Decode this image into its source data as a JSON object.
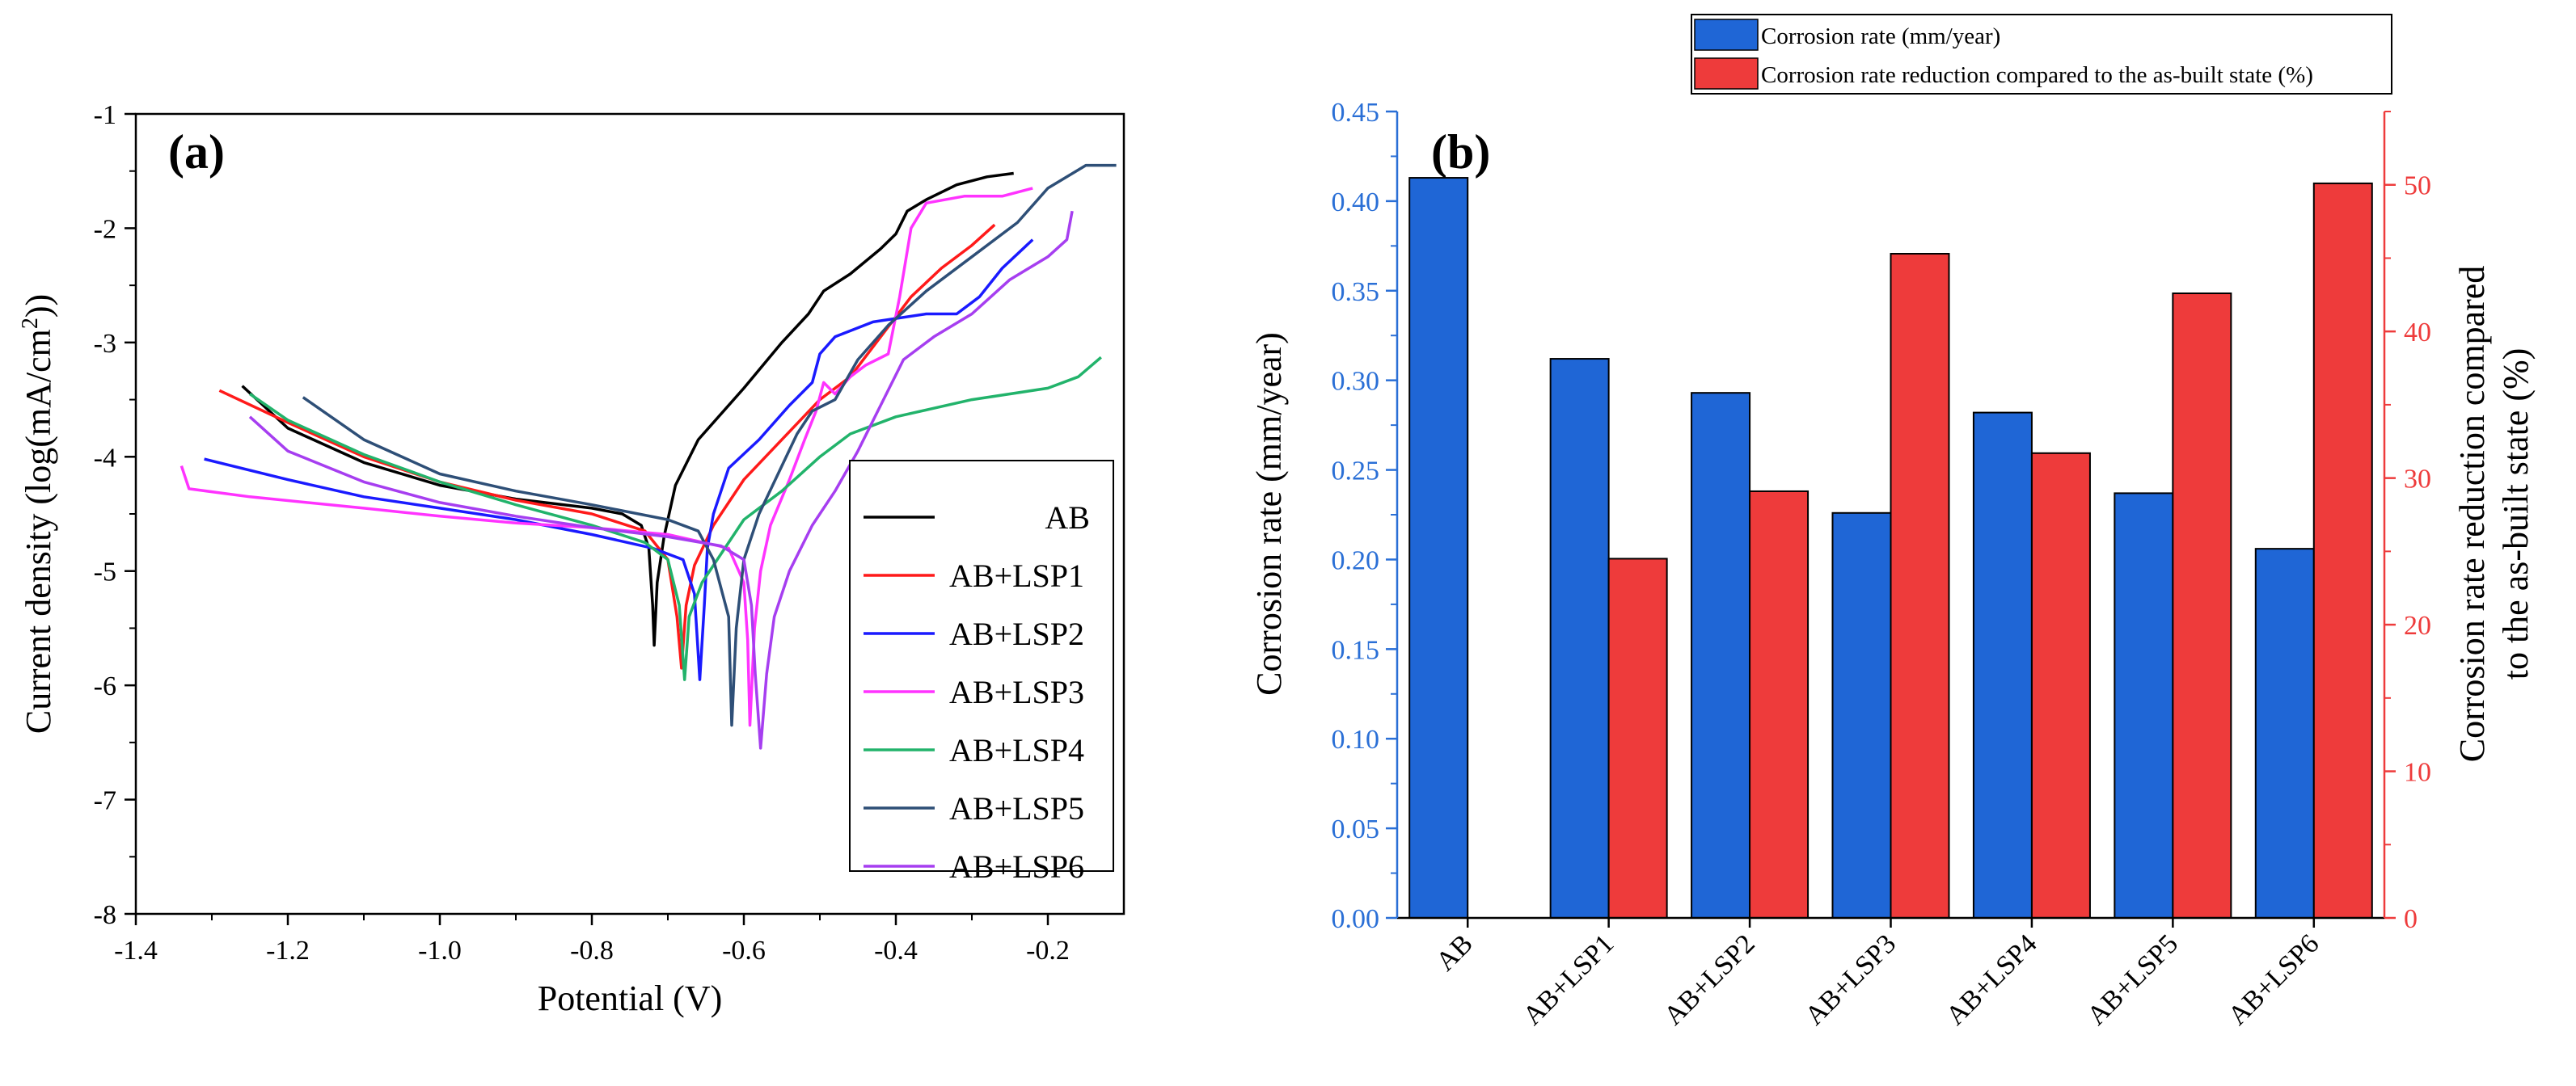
{
  "colors": {
    "AB": "#000000",
    "LSP1": "#ff1a1a",
    "LSP2": "#1a1aff",
    "LSP3": "#ff33ff",
    "LSP4": "#22b36b",
    "LSP5": "#2e4f77",
    "LSP6": "#a63ef0",
    "bar_blue": "#1f66d6",
    "bar_red": "#ee3b3b",
    "axis_blue": "#2a6fd6",
    "axis_red": "#ee3b3b"
  },
  "chart_data": [
    {
      "panel": "(a)",
      "type": "line",
      "xlabel": "Potential (V)",
      "ylabel_pre": "Current density (log(mA/cm",
      "ylabel_sup": "2",
      "ylabel_post": "))",
      "xlim": [
        -1.4,
        -0.1
      ],
      "ylim": [
        -8,
        -1
      ],
      "xticks": [
        -1.4,
        -1.2,
        -1.0,
        -0.8,
        -0.6,
        -0.4,
        -0.2
      ],
      "xtick_labels": [
        "-1.4",
        "-1.2",
        "-1.0",
        "-0.8",
        "-0.6",
        "-0.4",
        "-0.2"
      ],
      "yticks": [
        -8,
        -7,
        -6,
        -5,
        -4,
        -3,
        -2,
        -1
      ],
      "ytick_labels": [
        "-8",
        "-7",
        "-6",
        "-5",
        "-4",
        "-3",
        "-2",
        "-1"
      ],
      "legend_position": "right",
      "series": [
        {
          "name": "AB",
          "color_key": "AB",
          "points": [
            [
              -1.26,
              -3.38
            ],
            [
              -1.2,
              -3.75
            ],
            [
              -1.1,
              -4.05
            ],
            [
              -1.0,
              -4.25
            ],
            [
              -0.9,
              -4.37
            ],
            [
              -0.8,
              -4.45
            ],
            [
              -0.76,
              -4.5
            ],
            [
              -0.735,
              -4.6
            ],
            [
              -0.725,
              -4.8
            ],
            [
              -0.72,
              -5.3
            ],
            [
              -0.718,
              -5.65
            ],
            [
              -0.714,
              -5.1
            ],
            [
              -0.705,
              -4.7
            ],
            [
              -0.69,
              -4.25
            ],
            [
              -0.66,
              -3.85
            ],
            [
              -0.6,
              -3.4
            ],
            [
              -0.55,
              -3.0
            ],
            [
              -0.515,
              -2.75
            ],
            [
              -0.495,
              -2.55
            ],
            [
              -0.46,
              -2.4
            ],
            [
              -0.42,
              -2.18
            ],
            [
              -0.4,
              -2.05
            ],
            [
              -0.385,
              -1.85
            ],
            [
              -0.36,
              -1.75
            ],
            [
              -0.32,
              -1.62
            ],
            [
              -0.28,
              -1.55
            ],
            [
              -0.245,
              -1.52
            ]
          ]
        },
        {
          "name": "AB+LSP1",
          "color_key": "LSP1",
          "points": [
            [
              -1.29,
              -3.42
            ],
            [
              -1.2,
              -3.7
            ],
            [
              -1.1,
              -4.0
            ],
            [
              -1.0,
              -4.22
            ],
            [
              -0.9,
              -4.38
            ],
            [
              -0.8,
              -4.5
            ],
            [
              -0.73,
              -4.65
            ],
            [
              -0.7,
              -4.9
            ],
            [
              -0.688,
              -5.4
            ],
            [
              -0.682,
              -5.85
            ],
            [
              -0.676,
              -5.3
            ],
            [
              -0.665,
              -4.95
            ],
            [
              -0.64,
              -4.6
            ],
            [
              -0.6,
              -4.2
            ],
            [
              -0.55,
              -3.85
            ],
            [
              -0.5,
              -3.5
            ],
            [
              -0.46,
              -3.3
            ],
            [
              -0.42,
              -2.95
            ],
            [
              -0.38,
              -2.6
            ],
            [
              -0.34,
              -2.35
            ],
            [
              -0.3,
              -2.15
            ],
            [
              -0.27,
              -1.97
            ]
          ]
        },
        {
          "name": "AB+LSP2",
          "color_key": "LSP2",
          "points": [
            [
              -1.31,
              -4.02
            ],
            [
              -1.2,
              -4.2
            ],
            [
              -1.1,
              -4.35
            ],
            [
              -1.0,
              -4.45
            ],
            [
              -0.9,
              -4.55
            ],
            [
              -0.8,
              -4.68
            ],
            [
              -0.72,
              -4.8
            ],
            [
              -0.68,
              -4.9
            ],
            [
              -0.665,
              -5.2
            ],
            [
              -0.658,
              -5.95
            ],
            [
              -0.652,
              -5.3
            ],
            [
              -0.648,
              -4.8
            ],
            [
              -0.64,
              -4.5
            ],
            [
              -0.62,
              -4.1
            ],
            [
              -0.58,
              -3.85
            ],
            [
              -0.54,
              -3.55
            ],
            [
              -0.51,
              -3.35
            ],
            [
              -0.5,
              -3.1
            ],
            [
              -0.48,
              -2.95
            ],
            [
              -0.43,
              -2.82
            ],
            [
              -0.36,
              -2.75
            ],
            [
              -0.32,
              -2.75
            ],
            [
              -0.29,
              -2.6
            ],
            [
              -0.26,
              -2.35
            ],
            [
              -0.22,
              -2.1
            ]
          ]
        },
        {
          "name": "AB+LSP3",
          "color_key": "LSP3",
          "points": [
            [
              -1.34,
              -4.08
            ],
            [
              -1.33,
              -4.28
            ],
            [
              -1.25,
              -4.35
            ],
            [
              -1.1,
              -4.45
            ],
            [
              -1.0,
              -4.52
            ],
            [
              -0.9,
              -4.58
            ],
            [
              -0.8,
              -4.62
            ],
            [
              -0.7,
              -4.68
            ],
            [
              -0.62,
              -4.8
            ],
            [
              -0.6,
              -5.1
            ],
            [
              -0.595,
              -5.6
            ],
            [
              -0.592,
              -6.35
            ],
            [
              -0.586,
              -5.5
            ],
            [
              -0.578,
              -5.0
            ],
            [
              -0.565,
              -4.6
            ],
            [
              -0.54,
              -4.2
            ],
            [
              -0.52,
              -3.85
            ],
            [
              -0.505,
              -3.6
            ],
            [
              -0.495,
              -3.35
            ],
            [
              -0.48,
              -3.45
            ],
            [
              -0.46,
              -3.3
            ],
            [
              -0.44,
              -3.2
            ],
            [
              -0.41,
              -3.1
            ],
            [
              -0.395,
              -2.6
            ],
            [
              -0.38,
              -2.0
            ],
            [
              -0.36,
              -1.78
            ],
            [
              -0.31,
              -1.72
            ],
            [
              -0.26,
              -1.72
            ],
            [
              -0.22,
              -1.65
            ]
          ]
        },
        {
          "name": "AB+LSP4",
          "color_key": "LSP4",
          "points": [
            [
              -1.25,
              -3.45
            ],
            [
              -1.2,
              -3.68
            ],
            [
              -1.1,
              -3.98
            ],
            [
              -1.0,
              -4.22
            ],
            [
              -0.9,
              -4.42
            ],
            [
              -0.8,
              -4.6
            ],
            [
              -0.73,
              -4.75
            ],
            [
              -0.7,
              -4.9
            ],
            [
              -0.685,
              -5.3
            ],
            [
              -0.678,
              -5.95
            ],
            [
              -0.672,
              -5.4
            ],
            [
              -0.655,
              -5.1
            ],
            [
              -0.63,
              -4.85
            ],
            [
              -0.6,
              -4.55
            ],
            [
              -0.55,
              -4.3
            ],
            [
              -0.5,
              -4.0
            ],
            [
              -0.46,
              -3.8
            ],
            [
              -0.4,
              -3.65
            ],
            [
              -0.3,
              -3.5
            ],
            [
              -0.2,
              -3.4
            ],
            [
              -0.16,
              -3.3
            ],
            [
              -0.13,
              -3.13
            ]
          ]
        },
        {
          "name": "AB+LSP5",
          "color_key": "LSP5",
          "points": [
            [
              -1.18,
              -3.48
            ],
            [
              -1.1,
              -3.85
            ],
            [
              -1.0,
              -4.15
            ],
            [
              -0.9,
              -4.3
            ],
            [
              -0.8,
              -4.42
            ],
            [
              -0.7,
              -4.55
            ],
            [
              -0.66,
              -4.65
            ],
            [
              -0.64,
              -4.9
            ],
            [
              -0.62,
              -5.4
            ],
            [
              -0.616,
              -6.35
            ],
            [
              -0.61,
              -5.5
            ],
            [
              -0.6,
              -4.9
            ],
            [
              -0.58,
              -4.5
            ],
            [
              -0.555,
              -4.15
            ],
            [
              -0.53,
              -3.8
            ],
            [
              -0.51,
              -3.6
            ],
            [
              -0.48,
              -3.5
            ],
            [
              -0.45,
              -3.15
            ],
            [
              -0.41,
              -2.85
            ],
            [
              -0.36,
              -2.55
            ],
            [
              -0.3,
              -2.25
            ],
            [
              -0.24,
              -1.95
            ],
            [
              -0.2,
              -1.65
            ],
            [
              -0.15,
              -1.45
            ],
            [
              -0.11,
              -1.45
            ]
          ]
        },
        {
          "name": "AB+LSP6",
          "color_key": "LSP6",
          "points": [
            [
              -1.25,
              -3.65
            ],
            [
              -1.2,
              -3.95
            ],
            [
              -1.1,
              -4.22
            ],
            [
              -1.0,
              -4.4
            ],
            [
              -0.9,
              -4.52
            ],
            [
              -0.8,
              -4.62
            ],
            [
              -0.7,
              -4.7
            ],
            [
              -0.63,
              -4.78
            ],
            [
              -0.6,
              -4.9
            ],
            [
              -0.59,
              -5.3
            ],
            [
              -0.585,
              -5.9
            ],
            [
              -0.578,
              -6.55
            ],
            [
              -0.57,
              -5.9
            ],
            [
              -0.56,
              -5.4
            ],
            [
              -0.54,
              -5.0
            ],
            [
              -0.51,
              -4.6
            ],
            [
              -0.48,
              -4.3
            ],
            [
              -0.45,
              -3.95
            ],
            [
              -0.42,
              -3.55
            ],
            [
              -0.39,
              -3.15
            ],
            [
              -0.35,
              -2.95
            ],
            [
              -0.3,
              -2.75
            ],
            [
              -0.25,
              -2.45
            ],
            [
              -0.2,
              -2.25
            ],
            [
              -0.175,
              -2.1
            ],
            [
              -0.168,
              -1.85
            ]
          ]
        }
      ]
    },
    {
      "panel": "(b)",
      "type": "bar",
      "categories": [
        "AB",
        "AB+LSP1",
        "AB+LSP2",
        "AB+LSP3",
        "AB+LSP4",
        "AB+LSP5",
        "AB+LSP6"
      ],
      "ylabel_left": "Corrosion rate (mm/year)",
      "ylabel_right_line1": "Corrosion rate reduction compared",
      "ylabel_right_line2": "to the as-built state (%)",
      "ylim_left": [
        0,
        0.45
      ],
      "ylim_right": [
        0,
        55
      ],
      "yticks_left": [
        "0.00",
        "0.05",
        "0.10",
        "0.15",
        "0.20",
        "0.25",
        "0.30",
        "0.35",
        "0.40",
        "0.45"
      ],
      "yticks_right": [
        "0",
        "10",
        "20",
        "30",
        "40",
        "50"
      ],
      "legend_position": "top-right",
      "series": [
        {
          "name": "Corrosion rate (mm/year)",
          "axis": "left",
          "color_key": "bar_blue",
          "values": [
            0.413,
            0.312,
            0.293,
            0.226,
            0.282,
            0.237,
            0.206
          ]
        },
        {
          "name": "Corrosion rate reduction compared to the as-built state (%)",
          "axis": "right",
          "color_key": "bar_red",
          "values": [
            null,
            24.5,
            29.1,
            45.3,
            31.7,
            42.6,
            50.1
          ]
        }
      ]
    }
  ]
}
